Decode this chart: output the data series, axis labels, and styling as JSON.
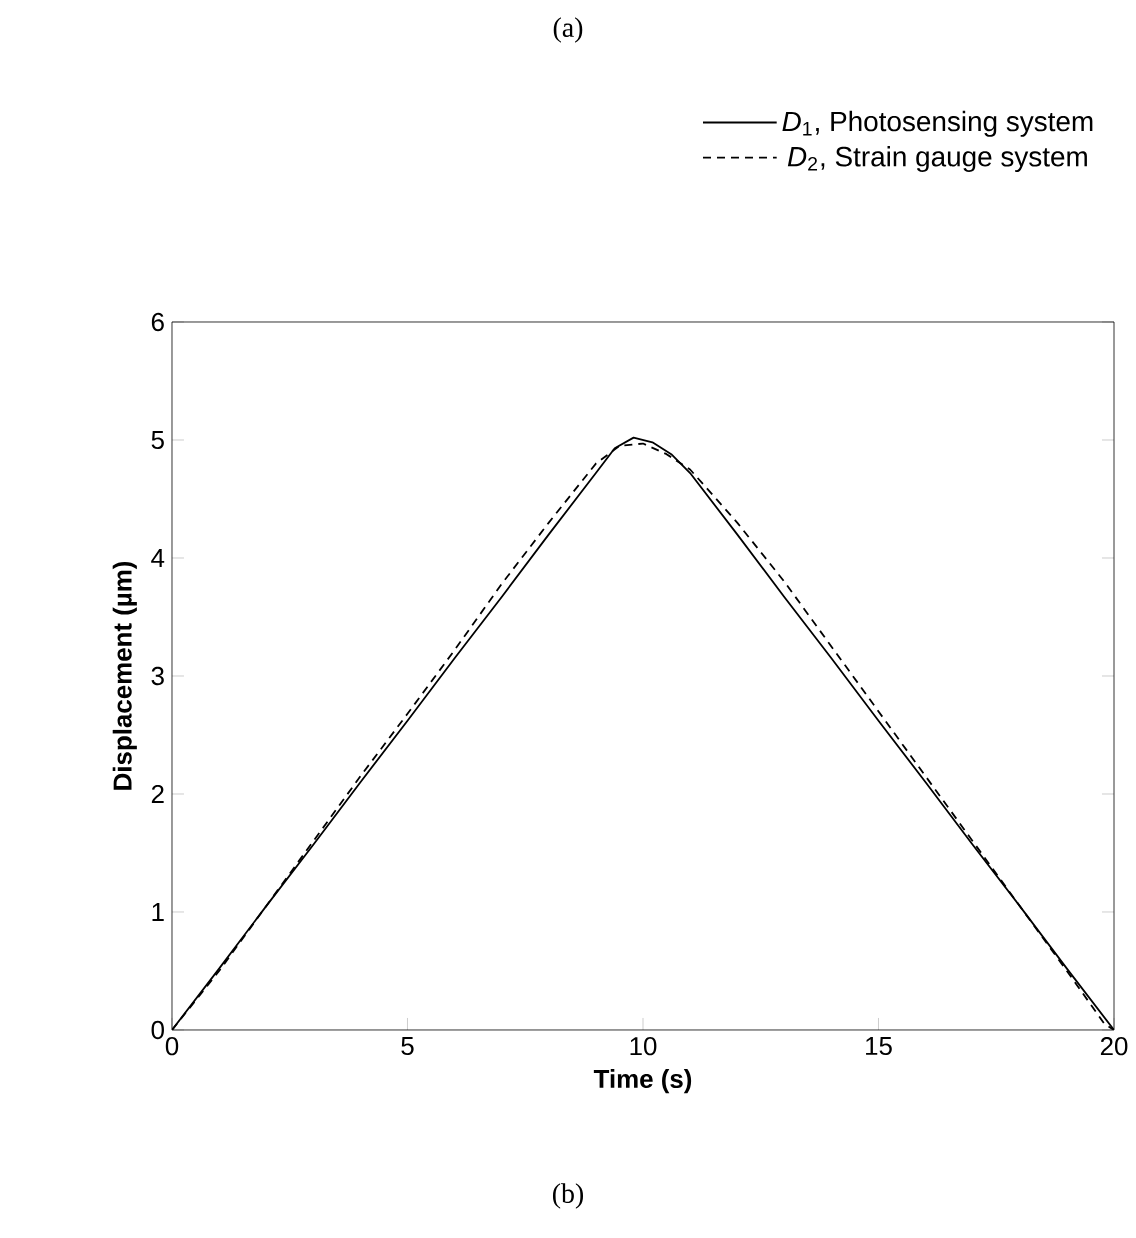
{
  "chart_data": {
    "type": "line",
    "title": "(a)",
    "xlabel": "Time (s)",
    "ylabel": "Displacement (µm)",
    "annotations": [
      "(b)"
    ],
    "xlim": [
      0,
      20
    ],
    "ylim": [
      0,
      6
    ],
    "xticks": [
      0,
      5,
      10,
      15,
      20
    ],
    "yticks": [
      0,
      1,
      2,
      3,
      4,
      5,
      6
    ],
    "legend": "top right",
    "grid": false,
    "marker": "none",
    "series": [
      {
        "name": "*D*$_{1}$, Photosensing system",
        "color": "#000000",
        "line_style": "solid",
        "x": [
          0,
          1,
          2,
          3,
          4,
          5,
          6,
          7,
          8,
          9,
          9.4,
          9.8,
          10.2,
          10.6,
          11,
          12,
          13,
          14,
          15,
          16,
          17,
          18,
          19,
          20
        ],
        "values": [
          0,
          0.52,
          1.05,
          1.57,
          2.1,
          2.62,
          3.15,
          3.67,
          4.2,
          4.72,
          4.93,
          5.02,
          4.98,
          4.88,
          4.72,
          4.2,
          3.67,
          3.15,
          2.62,
          2.1,
          1.57,
          1.05,
          0.52,
          0
        ]
      },
      {
        "name": "*D*$_{2}$, Strain gauge system",
        "color": "#000000",
        "line_style": "dashed",
        "x": [
          0,
          1,
          2,
          3,
          4,
          5,
          6,
          7,
          8,
          9,
          9.5,
          10,
          10.5,
          11,
          12,
          13,
          14,
          15,
          16,
          17,
          18,
          19,
          19.8,
          20
        ],
        "values": [
          0,
          0.5,
          1.05,
          1.6,
          2.15,
          2.68,
          3.22,
          3.78,
          4.3,
          4.8,
          4.95,
          4.97,
          4.88,
          4.75,
          4.3,
          3.8,
          3.25,
          2.7,
          2.15,
          1.6,
          1.05,
          0.5,
          0.05,
          0
        ]
      }
    ]
  }
}
